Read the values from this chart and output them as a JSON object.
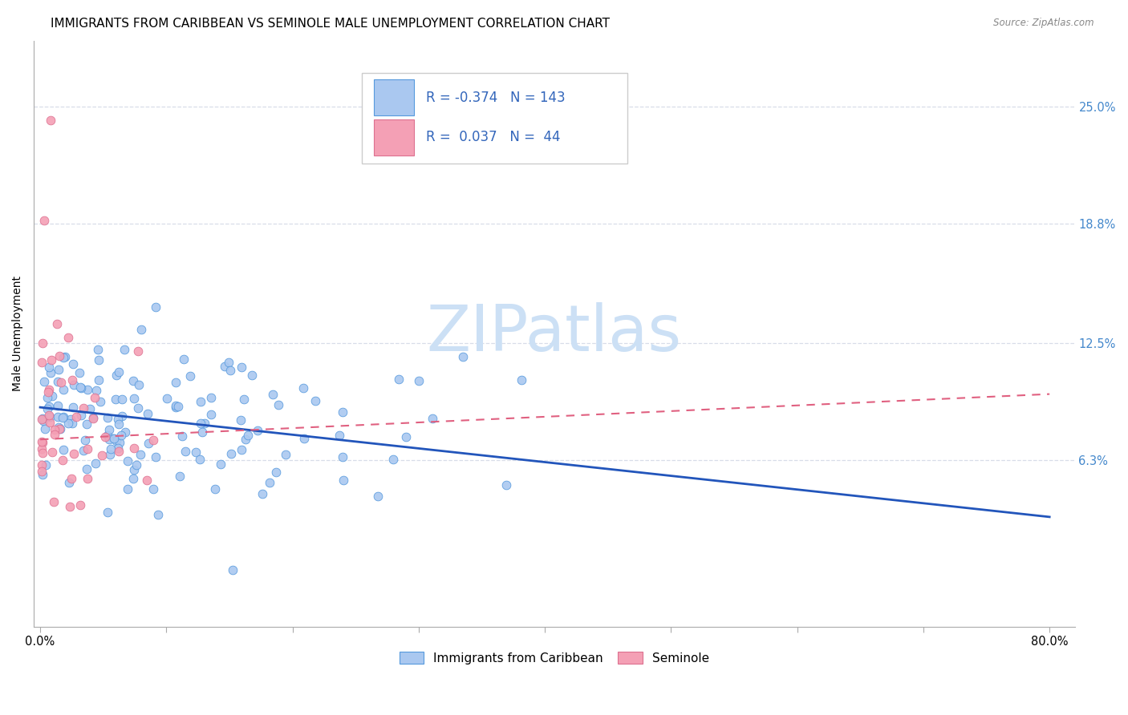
{
  "title": "IMMIGRANTS FROM CARIBBEAN VS SEMINOLE MALE UNEMPLOYMENT CORRELATION CHART",
  "source": "Source: ZipAtlas.com",
  "ylabel": "Male Unemployment",
  "x_tick_labels": [
    "0.0%",
    "",
    "",
    "",
    "",
    "",
    "",
    "",
    "80.0%"
  ],
  "x_tick_values": [
    0.0,
    0.1,
    0.2,
    0.3,
    0.4,
    0.5,
    0.6,
    0.7,
    0.8
  ],
  "y_tick_labels_right": [
    "6.3%",
    "12.5%",
    "18.8%",
    "25.0%"
  ],
  "y_tick_values": [
    0.063,
    0.125,
    0.188,
    0.25
  ],
  "xlim": [
    -0.005,
    0.82
  ],
  "ylim": [
    -0.025,
    0.285
  ],
  "legend1_label": "Immigrants from Caribbean",
  "legend2_label": "Seminole",
  "r1": "-0.374",
  "n1": "143",
  "r2": "0.037",
  "n2": "44",
  "color_blue": "#aac8f0",
  "color_pink": "#f4a0b5",
  "color_blue_line": "#2255bb",
  "color_pink_line": "#e06080",
  "color_blue_edge": "#5599dd",
  "color_pink_edge": "#dd7090",
  "watermark_color": "#cce0f5",
  "background_color": "#ffffff",
  "grid_color": "#d8dde8",
  "title_fontsize": 11,
  "axis_label_fontsize": 10,
  "tick_fontsize": 10.5,
  "legend_fontsize": 11,
  "blue_trend_x0": 0.0,
  "blue_trend_y0": 0.091,
  "blue_trend_x1": 0.8,
  "blue_trend_y1": 0.033,
  "pink_trend_x0": 0.0,
  "pink_trend_y0": 0.074,
  "pink_trend_x1": 0.8,
  "pink_trend_y1": 0.098
}
